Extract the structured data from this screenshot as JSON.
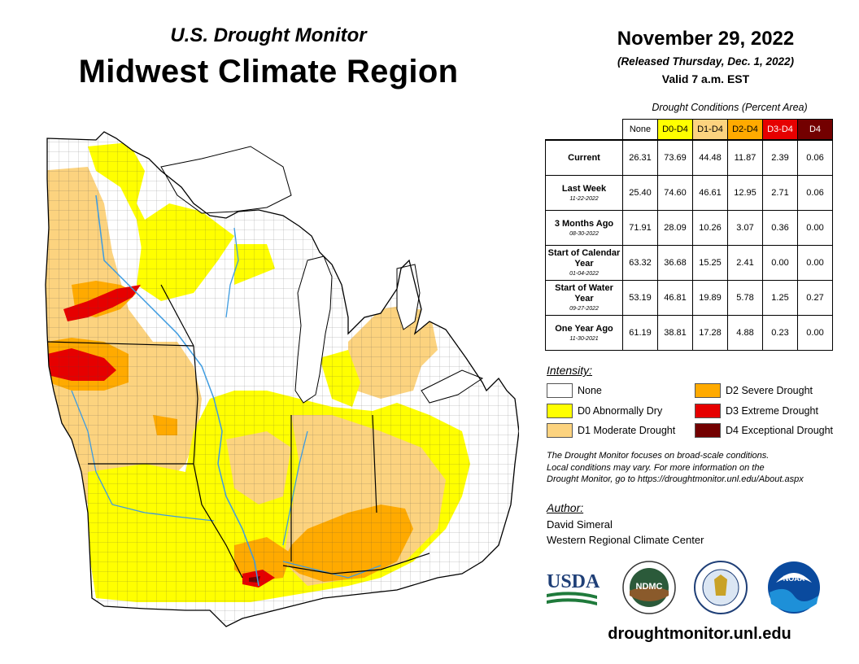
{
  "header": {
    "subtitle": "U.S. Drought Monitor",
    "title": "Midwest Climate Region",
    "date": "November 29, 2022",
    "released": "(Released Thursday, Dec. 1, 2022)",
    "valid": "Valid 7 a.m. EST"
  },
  "table": {
    "caption": "Drought Conditions (Percent Area)",
    "columns": [
      {
        "label": "None",
        "bg": "#ffffff",
        "fg": "#000000"
      },
      {
        "label": "D0-D4",
        "bg": "#ffff00",
        "fg": "#000000"
      },
      {
        "label": "D1-D4",
        "bg": "#fcd37f",
        "fg": "#000000"
      },
      {
        "label": "D2-D4",
        "bg": "#ffaa00",
        "fg": "#000000"
      },
      {
        "label": "D3-D4",
        "bg": "#e60000",
        "fg": "#ffffff"
      },
      {
        "label": "D4",
        "bg": "#730000",
        "fg": "#ffffff"
      }
    ],
    "rows": [
      {
        "label": "Current",
        "date": "",
        "values": [
          "26.31",
          "73.69",
          "44.48",
          "11.87",
          "2.39",
          "0.06"
        ]
      },
      {
        "label": "Last Week",
        "date": "11-22-2022",
        "values": [
          "25.40",
          "74.60",
          "46.61",
          "12.95",
          "2.71",
          "0.06"
        ]
      },
      {
        "label": "3 Months Ago",
        "date": "08-30-2022",
        "values": [
          "71.91",
          "28.09",
          "10.26",
          "3.07",
          "0.36",
          "0.00"
        ]
      },
      {
        "label": "Start of Calendar Year",
        "date": "01-04-2022",
        "values": [
          "63.32",
          "36.68",
          "15.25",
          "2.41",
          "0.00",
          "0.00"
        ]
      },
      {
        "label": "Start of Water Year",
        "date": "09-27-2022",
        "values": [
          "53.19",
          "46.81",
          "19.89",
          "5.78",
          "1.25",
          "0.27"
        ]
      },
      {
        "label": "One Year Ago",
        "date": "11-30-2021",
        "values": [
          "61.19",
          "38.81",
          "17.28",
          "4.88",
          "0.23",
          "0.00"
        ]
      }
    ]
  },
  "legend": {
    "title": "Intensity:",
    "items": [
      {
        "label": "None",
        "color": "#ffffff"
      },
      {
        "label": "D0 Abnormally Dry",
        "color": "#ffff00"
      },
      {
        "label": "D1 Moderate Drought",
        "color": "#fcd37f"
      },
      {
        "label": "D2 Severe Drought",
        "color": "#ffaa00"
      },
      {
        "label": "D3 Extreme Drought",
        "color": "#e60000"
      },
      {
        "label": "D4 Exceptional Drought",
        "color": "#730000"
      }
    ]
  },
  "note": {
    "line1": "The Drought Monitor focuses on broad-scale conditions.",
    "line2": "Local conditions may vary. For more information on the",
    "line3": "Drought Monitor, go to https://droughtmonitor.unl.edu/About.aspx"
  },
  "author": {
    "title": "Author:",
    "name": "David Simeral",
    "org": "Western Regional Climate Center"
  },
  "logos": {
    "usda": "USDA",
    "ndmc": "NDMC",
    "noaa": "NOAA"
  },
  "footer": {
    "site": "droughtmonitor.unl.edu"
  },
  "colors": {
    "water": "#9ed8f5",
    "river": "#3d9be0",
    "county_line": "#444444"
  }
}
